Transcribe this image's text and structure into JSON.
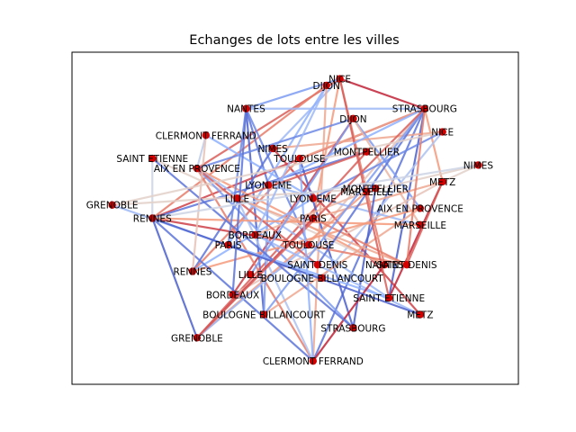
{
  "chart_data": {
    "type": "network",
    "title": "Echanges de lots entre les villes",
    "axes_visible": false,
    "xlim": [
      0,
      1
    ],
    "ylim": [
      0,
      1
    ],
    "node_color": "#d40000",
    "nodes": [
      {
        "label": "NICE",
        "x": 0.6,
        "y": 0.92
      },
      {
        "label": "DIJON",
        "x": 0.57,
        "y": 0.9
      },
      {
        "label": "NANTES",
        "x": 0.39,
        "y": 0.83
      },
      {
        "label": "STRASBOURG",
        "x": 0.79,
        "y": 0.83
      },
      {
        "label": "DIJON",
        "x": 0.63,
        "y": 0.8
      },
      {
        "label": "NICE",
        "x": 0.83,
        "y": 0.76
      },
      {
        "label": "CLERMONT FERRAND",
        "x": 0.3,
        "y": 0.75
      },
      {
        "label": "NIMES",
        "x": 0.45,
        "y": 0.71
      },
      {
        "label": "MONTPELLIER",
        "x": 0.66,
        "y": 0.7
      },
      {
        "label": "TOULOUSE",
        "x": 0.51,
        "y": 0.68
      },
      {
        "label": "SAINT ETIENNE",
        "x": 0.18,
        "y": 0.68
      },
      {
        "label": "NIMES",
        "x": 0.91,
        "y": 0.66
      },
      {
        "label": "AIX EN PROVENCE",
        "x": 0.28,
        "y": 0.65
      },
      {
        "label": "METZ",
        "x": 0.83,
        "y": 0.61
      },
      {
        "label": "LYON EME",
        "x": 0.44,
        "y": 0.6
      },
      {
        "label": "MONTPELLIER",
        "x": 0.68,
        "y": 0.59
      },
      {
        "label": "MARSEILLE",
        "x": 0.66,
        "y": 0.58
      },
      {
        "label": "LILLE",
        "x": 0.37,
        "y": 0.56
      },
      {
        "label": "LYON EME",
        "x": 0.54,
        "y": 0.56
      },
      {
        "label": "GRENOBLE",
        "x": 0.09,
        "y": 0.54
      },
      {
        "label": "AIX EN PROVENCE",
        "x": 0.78,
        "y": 0.53
      },
      {
        "label": "RENNES",
        "x": 0.18,
        "y": 0.5
      },
      {
        "label": "PARIS",
        "x": 0.54,
        "y": 0.5
      },
      {
        "label": "MARSEILLE",
        "x": 0.78,
        "y": 0.48
      },
      {
        "label": "BORDEAUX",
        "x": 0.41,
        "y": 0.45
      },
      {
        "label": "PARIS",
        "x": 0.35,
        "y": 0.42
      },
      {
        "label": "TOULOUSE",
        "x": 0.53,
        "y": 0.42
      },
      {
        "label": "SAINT DENIS",
        "x": 0.55,
        "y": 0.36
      },
      {
        "label": "NANTES",
        "x": 0.7,
        "y": 0.36
      },
      {
        "label": "SAINT DENIS",
        "x": 0.75,
        "y": 0.36
      },
      {
        "label": "RENNES",
        "x": 0.27,
        "y": 0.34
      },
      {
        "label": "LILLE",
        "x": 0.4,
        "y": 0.33
      },
      {
        "label": "BOULOGNE BILLANCOURT",
        "x": 0.56,
        "y": 0.32
      },
      {
        "label": "BORDEAUX",
        "x": 0.36,
        "y": 0.27
      },
      {
        "label": "SAINT ETIENNE",
        "x": 0.71,
        "y": 0.26
      },
      {
        "label": "BOULOGNE BILLANCOURT",
        "x": 0.43,
        "y": 0.21
      },
      {
        "label": "METZ",
        "x": 0.78,
        "y": 0.21
      },
      {
        "label": "STRASBOURG",
        "x": 0.63,
        "y": 0.17
      },
      {
        "label": "GRENOBLE",
        "x": 0.28,
        "y": 0.14
      },
      {
        "label": "CLERMONT FERRAND",
        "x": 0.54,
        "y": 0.07
      }
    ],
    "edges": [
      {
        "source": 0,
        "target": 3,
        "value": 0.95
      },
      {
        "source": 0,
        "target": 7,
        "value": 0.3
      },
      {
        "source": 0,
        "target": 12,
        "value": 0.85
      },
      {
        "source": 0,
        "target": 22,
        "value": 0.75
      },
      {
        "source": 0,
        "target": 28,
        "value": 0.8
      },
      {
        "source": 0,
        "target": 2,
        "value": 0.2
      },
      {
        "source": 1,
        "target": 39,
        "value": 0.7
      },
      {
        "source": 1,
        "target": 25,
        "value": 0.25
      },
      {
        "source": 1,
        "target": 21,
        "value": 0.8
      },
      {
        "source": 2,
        "target": 14,
        "value": 0.1
      },
      {
        "source": 2,
        "target": 26,
        "value": 0.15
      },
      {
        "source": 2,
        "target": 3,
        "value": 0.3
      },
      {
        "source": 2,
        "target": 35,
        "value": 0.05
      },
      {
        "source": 3,
        "target": 39,
        "value": 0.1
      },
      {
        "source": 3,
        "target": 21,
        "value": 0.9
      },
      {
        "source": 3,
        "target": 13,
        "value": 0.75
      },
      {
        "source": 3,
        "target": 26,
        "value": 0.6
      },
      {
        "source": 3,
        "target": 34,
        "value": 0.05
      },
      {
        "source": 3,
        "target": 9,
        "value": 0.7
      },
      {
        "source": 4,
        "target": 33,
        "value": 0.9
      },
      {
        "source": 4,
        "target": 20,
        "value": 0.2
      },
      {
        "source": 4,
        "target": 23,
        "value": 0.65
      },
      {
        "source": 4,
        "target": 12,
        "value": 0.15
      },
      {
        "source": 5,
        "target": 32,
        "value": 0.35
      },
      {
        "source": 5,
        "target": 7,
        "value": 0.7
      },
      {
        "source": 6,
        "target": 18,
        "value": 0.25
      },
      {
        "source": 6,
        "target": 12,
        "value": 0.4
      },
      {
        "source": 7,
        "target": 36,
        "value": 0.9
      },
      {
        "source": 7,
        "target": 30,
        "value": 0.1
      },
      {
        "source": 8,
        "target": 38,
        "value": 0.85
      },
      {
        "source": 8,
        "target": 21,
        "value": 0.1
      },
      {
        "source": 9,
        "target": 37,
        "value": 0.05
      },
      {
        "source": 9,
        "target": 30,
        "value": 0.8
      },
      {
        "source": 10,
        "target": 21,
        "value": 0.45
      },
      {
        "source": 10,
        "target": 28,
        "value": 0.55
      },
      {
        "source": 11,
        "target": 13,
        "value": 0.55
      },
      {
        "source": 11,
        "target": 16,
        "value": 0.55
      },
      {
        "source": 12,
        "target": 39,
        "value": 0.8
      },
      {
        "source": 12,
        "target": 28,
        "value": 0.75
      },
      {
        "source": 12,
        "target": 34,
        "value": 0.3
      },
      {
        "source": 12,
        "target": 37,
        "value": 0.2
      },
      {
        "source": 13,
        "target": 34,
        "value": 0.95
      },
      {
        "source": 13,
        "target": 22,
        "value": 0.7
      },
      {
        "source": 13,
        "target": 33,
        "value": 0.6
      },
      {
        "source": 13,
        "target": 29,
        "value": 0.85
      },
      {
        "source": 14,
        "target": 23,
        "value": 0.3
      },
      {
        "source": 14,
        "target": 35,
        "value": 0.2
      },
      {
        "source": 15,
        "target": 19,
        "value": 0.55
      },
      {
        "source": 15,
        "target": 37,
        "value": 0.05
      },
      {
        "source": 16,
        "target": 38,
        "value": 0.75
      },
      {
        "source": 16,
        "target": 24,
        "value": 0.65
      },
      {
        "source": 17,
        "target": 39,
        "value": 0.35
      },
      {
        "source": 17,
        "target": 29,
        "value": 0.7
      },
      {
        "source": 18,
        "target": 30,
        "value": 0.25
      },
      {
        "source": 18,
        "target": 5,
        "value": 0.15
      },
      {
        "source": 20,
        "target": 30,
        "value": 0.75
      },
      {
        "source": 20,
        "target": 35,
        "value": 0.7
      },
      {
        "source": 21,
        "target": 38,
        "value": 0.05
      },
      {
        "source": 21,
        "target": 39,
        "value": 0.1
      },
      {
        "source": 21,
        "target": 26,
        "value": 0.9
      },
      {
        "source": 21,
        "target": 23,
        "value": 0.75
      },
      {
        "source": 22,
        "target": 38,
        "value": 0.9
      },
      {
        "source": 22,
        "target": 29,
        "value": 0.8
      },
      {
        "source": 24,
        "target": 29,
        "value": 0.8
      },
      {
        "source": 24,
        "target": 36,
        "value": 0.3
      },
      {
        "source": 25,
        "target": 2,
        "value": 0.15
      },
      {
        "source": 25,
        "target": 34,
        "value": 0.25
      },
      {
        "source": 26,
        "target": 38,
        "value": 0.3
      },
      {
        "source": 27,
        "target": 3,
        "value": 0.1
      },
      {
        "source": 27,
        "target": 12,
        "value": 0.85
      },
      {
        "source": 28,
        "target": 39,
        "value": 0.95
      },
      {
        "source": 29,
        "target": 3,
        "value": 0.8
      },
      {
        "source": 31,
        "target": 4,
        "value": 0.2
      },
      {
        "source": 32,
        "target": 19,
        "value": 0.3
      },
      {
        "source": 33,
        "target": 2,
        "value": 0.1
      },
      {
        "source": 34,
        "target": 0,
        "value": 0.85
      },
      {
        "source": 35,
        "target": 3,
        "value": 0.2
      },
      {
        "source": 36,
        "target": 21,
        "value": 0.05
      },
      {
        "source": 37,
        "target": 10,
        "value": 0.1
      },
      {
        "source": 38,
        "target": 3,
        "value": 0.85
      },
      {
        "source": 39,
        "target": 9,
        "value": 0.25
      },
      {
        "source": 17,
        "target": 8,
        "value": 0.85
      },
      {
        "source": 14,
        "target": 3,
        "value": 0.25
      },
      {
        "source": 6,
        "target": 30,
        "value": 0.6
      },
      {
        "source": 19,
        "target": 5,
        "value": 0.55
      },
      {
        "source": 11,
        "target": 21,
        "value": 0.45
      },
      {
        "source": 24,
        "target": 1,
        "value": 0.3
      }
    ]
  }
}
